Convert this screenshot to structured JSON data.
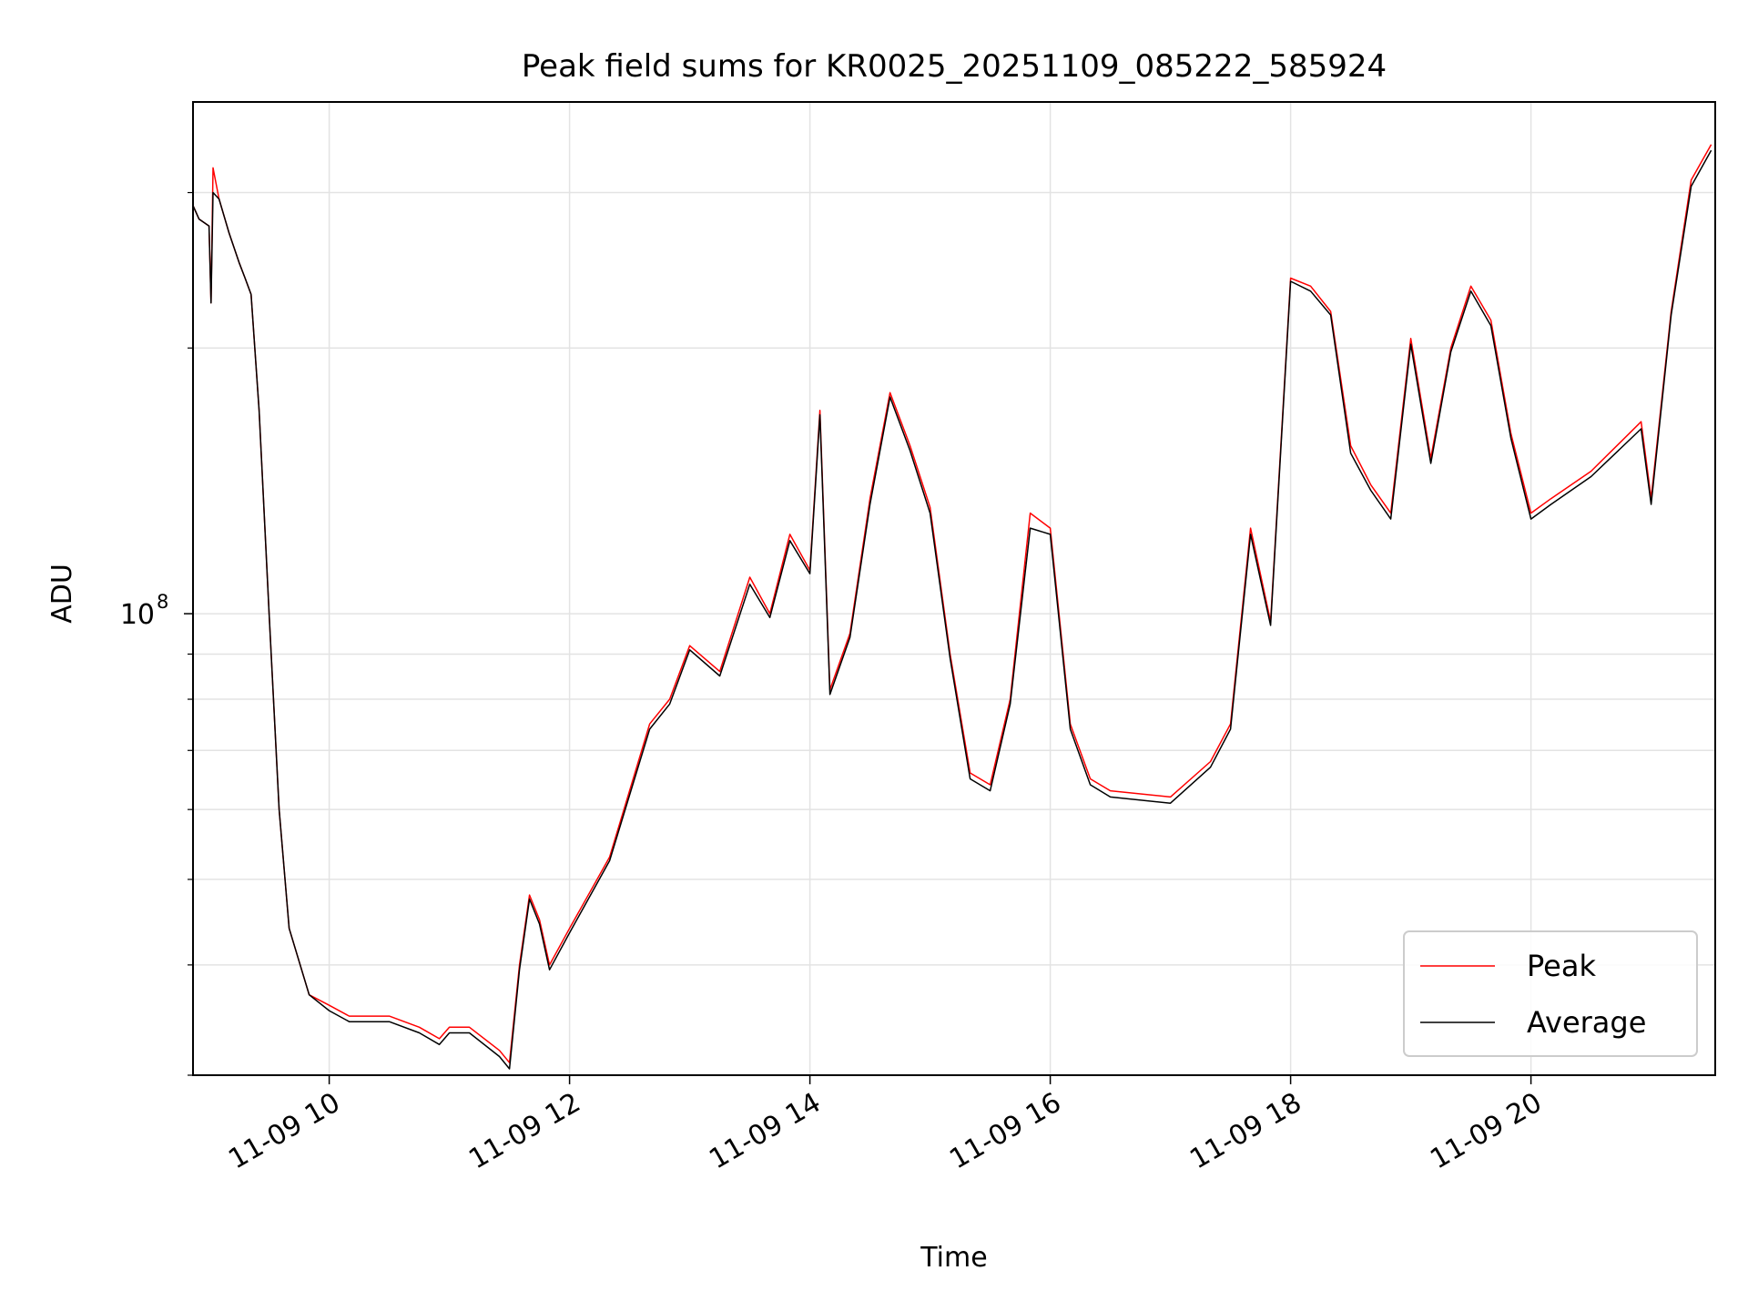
{
  "chart_data": {
    "type": "line",
    "title": "Peak field sums for KR0025_20251109_085222_585924",
    "xlabel": "Time",
    "ylabel": "ADU",
    "yscale": "log",
    "xlim": [
      "2025-11-09 08:52",
      "2025-11-09 21:32"
    ],
    "ylim": [
      30000000,
      380000000
    ],
    "x_ticks": [
      "11-09 10",
      "11-09 12",
      "11-09 14",
      "11-09 16",
      "11-09 18",
      "11-09 20"
    ],
    "y_tick_major": {
      "base": "10",
      "exp": "8",
      "value": 100000000
    },
    "y_minor_ticks": [
      30000000,
      40000000,
      50000000,
      60000000,
      70000000,
      80000000,
      90000000,
      200000000,
      300000000
    ],
    "grid": true,
    "legend": {
      "position": "lower right",
      "entries": [
        "Peak",
        "Average"
      ]
    },
    "x": [
      "2025-11-09 08:52",
      "2025-11-09 08:55",
      "2025-11-09 09:00",
      "2025-11-09 09:01",
      "2025-11-09 09:02",
      "2025-11-09 09:05",
      "2025-11-09 09:10",
      "2025-11-09 09:15",
      "2025-11-09 09:18",
      "2025-11-09 09:21",
      "2025-11-09 09:25",
      "2025-11-09 09:30",
      "2025-11-09 09:35",
      "2025-11-09 09:40",
      "2025-11-09 09:50",
      "2025-11-09 10:00",
      "2025-11-09 10:10",
      "2025-11-09 10:30",
      "2025-11-09 10:45",
      "2025-11-09 10:55",
      "2025-11-09 11:00",
      "2025-11-09 11:10",
      "2025-11-09 11:25",
      "2025-11-09 11:30",
      "2025-11-09 11:35",
      "2025-11-09 11:40",
      "2025-11-09 11:45",
      "2025-11-09 11:50",
      "2025-11-09 12:00",
      "2025-11-09 12:20",
      "2025-11-09 12:40",
      "2025-11-09 12:50",
      "2025-11-09 13:00",
      "2025-11-09 13:15",
      "2025-11-09 13:30",
      "2025-11-09 13:40",
      "2025-11-09 13:50",
      "2025-11-09 14:00",
      "2025-11-09 14:05",
      "2025-11-09 14:10",
      "2025-11-09 14:20",
      "2025-11-09 14:30",
      "2025-11-09 14:40",
      "2025-11-09 14:50",
      "2025-11-09 15:00",
      "2025-11-09 15:10",
      "2025-11-09 15:20",
      "2025-11-09 15:30",
      "2025-11-09 15:40",
      "2025-11-09 15:50",
      "2025-11-09 16:00",
      "2025-11-09 16:10",
      "2025-11-09 16:20",
      "2025-11-09 16:30",
      "2025-11-09 17:00",
      "2025-11-09 17:20",
      "2025-11-09 17:30",
      "2025-11-09 17:40",
      "2025-11-09 17:50",
      "2025-11-09 18:00",
      "2025-11-09 18:10",
      "2025-11-09 18:20",
      "2025-11-09 18:30",
      "2025-11-09 18:40",
      "2025-11-09 18:50",
      "2025-11-09 19:00",
      "2025-11-09 19:10",
      "2025-11-09 19:20",
      "2025-11-09 19:30",
      "2025-11-09 19:40",
      "2025-11-09 19:50",
      "2025-11-09 20:00",
      "2025-11-09 20:10",
      "2025-11-09 20:30",
      "2025-11-09 20:55",
      "2025-11-09 21:00",
      "2025-11-09 21:10",
      "2025-11-09 21:20",
      "2025-11-09 21:30"
    ],
    "series": [
      {
        "name": "Peak",
        "color": "#ff0000",
        "values": [
          290000000,
          280000000,
          275000000,
          225000000,
          320000000,
          295000000,
          270000000,
          250000000,
          240000000,
          230000000,
          170000000,
          100000000,
          60000000,
          44000000,
          37000000,
          36000000,
          35000000,
          35000000,
          34000000,
          33000000,
          34000000,
          34000000,
          32000000,
          31000000,
          40000000,
          48000000,
          45000000,
          40000000,
          44000000,
          53000000,
          75000000,
          80000000,
          92000000,
          86000000,
          110000000,
          100000000,
          123000000,
          112000000,
          170000000,
          82000000,
          95000000,
          135000000,
          178000000,
          155000000,
          132000000,
          90000000,
          66000000,
          64000000,
          80000000,
          130000000,
          125000000,
          75000000,
          65000000,
          63000000,
          62000000,
          68000000,
          75000000,
          125000000,
          98000000,
          240000000,
          235000000,
          220000000,
          155000000,
          140000000,
          130000000,
          205000000,
          150000000,
          200000000,
          235000000,
          215000000,
          160000000,
          130000000,
          135000000,
          145000000,
          165000000,
          135000000,
          220000000,
          310000000,
          340000000
        ]
      },
      {
        "name": "Average",
        "color": "#000000",
        "values": [
          290000000,
          280000000,
          275000000,
          225000000,
          300000000,
          295000000,
          270000000,
          250000000,
          240000000,
          230000000,
          170000000,
          100000000,
          60000000,
          44000000,
          37000000,
          35500000,
          34500000,
          34500000,
          33500000,
          32500000,
          33500000,
          33500000,
          31500000,
          30500000,
          39500000,
          47500000,
          44500000,
          39500000,
          43500000,
          52500000,
          74000000,
          79000000,
          91000000,
          85000000,
          108000000,
          99000000,
          121000000,
          111000000,
          168000000,
          81000000,
          94000000,
          133000000,
          176000000,
          153000000,
          130000000,
          89000000,
          65000000,
          63000000,
          79000000,
          125000000,
          123000000,
          74000000,
          64000000,
          62000000,
          61000000,
          67000000,
          74000000,
          123000000,
          97000000,
          238000000,
          232000000,
          218000000,
          152000000,
          138000000,
          128000000,
          202000000,
          148000000,
          198000000,
          232000000,
          212000000,
          158000000,
          128000000,
          133000000,
          143000000,
          162000000,
          133000000,
          218000000,
          305000000,
          335000000
        ]
      }
    ]
  }
}
